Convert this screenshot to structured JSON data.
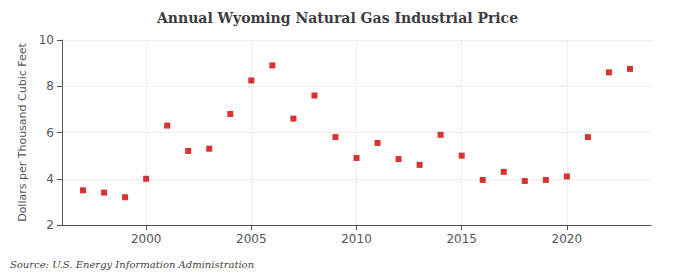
{
  "chart_data": {
    "type": "scatter",
    "title": "Annual Wyoming Natural Gas Industrial Price",
    "ylabel": "Dollars per Thousand Cubic Feet",
    "source": "Source: U.S. Energy Information Administration",
    "x": [
      1997,
      1998,
      1999,
      2000,
      2001,
      2002,
      2003,
      2004,
      2005,
      2006,
      2007,
      2008,
      2009,
      2010,
      2011,
      2012,
      2013,
      2014,
      2015,
      2016,
      2017,
      2018,
      2019,
      2020,
      2021,
      2022,
      2023
    ],
    "values": [
      3.5,
      3.4,
      3.2,
      4.0,
      6.3,
      5.2,
      5.3,
      6.8,
      8.25,
      8.9,
      6.6,
      7.6,
      5.8,
      4.9,
      5.55,
      4.85,
      4.6,
      5.9,
      5.0,
      3.95,
      4.3,
      3.9,
      3.95,
      4.1,
      5.8,
      8.6,
      8.75
    ],
    "color": "#cc0000",
    "marker": "square",
    "xlim": [
      1996,
      2024
    ],
    "xticks": [
      2000,
      2005,
      2010,
      2015,
      2020
    ],
    "ylim": [
      2,
      10
    ],
    "yticks": [
      2,
      4,
      6,
      8,
      10
    ],
    "grid": true
  }
}
